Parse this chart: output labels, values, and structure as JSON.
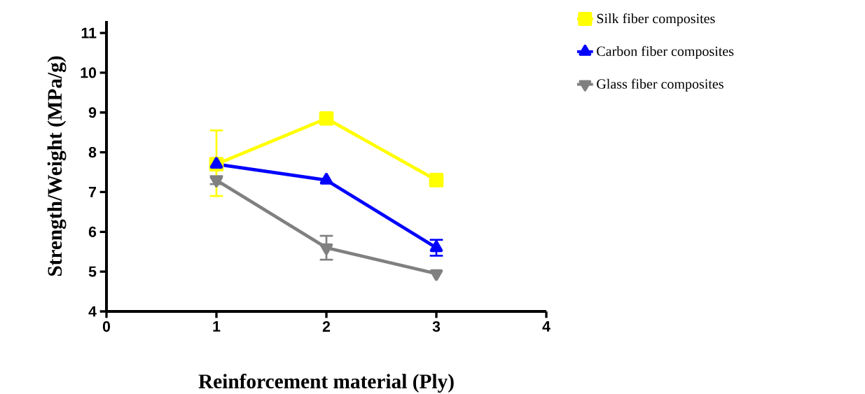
{
  "chart_data": {
    "type": "line",
    "xlabel": "Reinforcement material (Ply)",
    "ylabel": "Strength/Weight (MPa/g)",
    "x": [
      1,
      2,
      3
    ],
    "series": [
      {
        "name": "Silk fiber composites",
        "color": "#ffff00",
        "marker": "square",
        "values": [
          7.7,
          8.85,
          7.3
        ],
        "errors": [
          [
            6.9,
            8.55
          ],
          null,
          null
        ]
      },
      {
        "name": "Carbon fiber composites",
        "color": "#0000ff",
        "marker": "triangle",
        "values": [
          7.7,
          7.3,
          5.6
        ],
        "errors": [
          null,
          null,
          0.2
        ]
      },
      {
        "name": "Glass fiber composites",
        "color": "#808080",
        "marker": "triangle-down",
        "values": [
          7.3,
          5.6,
          4.95
        ],
        "errors": [
          0.1,
          0.3,
          null
        ]
      }
    ],
    "xlim": [
      0,
      4
    ],
    "xticks": [
      0,
      1,
      2,
      3,
      4
    ],
    "ylim": [
      4,
      11.3
    ],
    "yticks": [
      4,
      5,
      6,
      7,
      8,
      9,
      10,
      11
    ],
    "grid": false,
    "legend": "top right",
    "line_style": "solid"
  }
}
